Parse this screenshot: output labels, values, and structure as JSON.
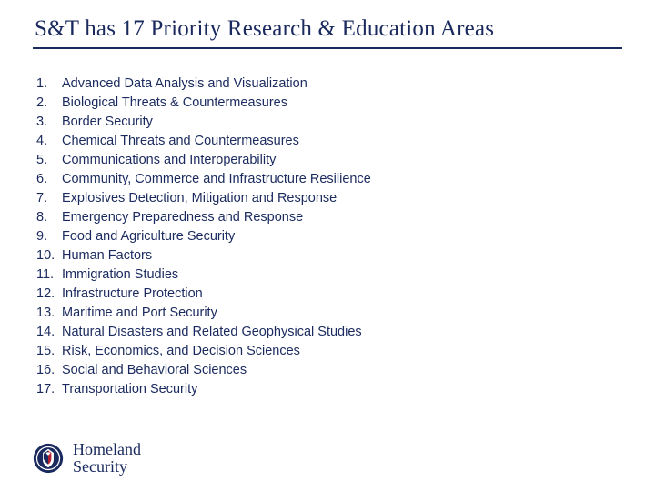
{
  "title": "S&T has 17 Priority Research & Education Areas",
  "title_color": "#1a2a5e",
  "underline_color": "#1a2a5e",
  "list_text_color": "#1a2a5e",
  "list_fontsize": 14.5,
  "title_fontsize": 25,
  "items": [
    "Advanced Data Analysis and Visualization",
    "Biological Threats & Countermeasures",
    "Border Security",
    "Chemical Threats and Countermeasures",
    "Communications and Interoperability",
    "Community, Commerce and Infrastructure Resilience",
    "Explosives Detection, Mitigation and Response",
    "Emergency Preparedness and Response",
    "Food and Agriculture Security",
    "Human Factors",
    "Immigration Studies",
    "Infrastructure Protection",
    "Maritime and Port Security",
    "Natural Disasters and Related Geophysical Studies",
    "Risk, Economics, and Decision Sciences",
    "Social and Behavioral Sciences",
    "Transportation Security"
  ],
  "logo": {
    "line1": "Homeland",
    "line2": "Security",
    "seal_outer": "#1a2a5e",
    "seal_inner": "#ffffff",
    "seal_eagle": "#1a2a5e",
    "seal_red": "#b22234"
  }
}
